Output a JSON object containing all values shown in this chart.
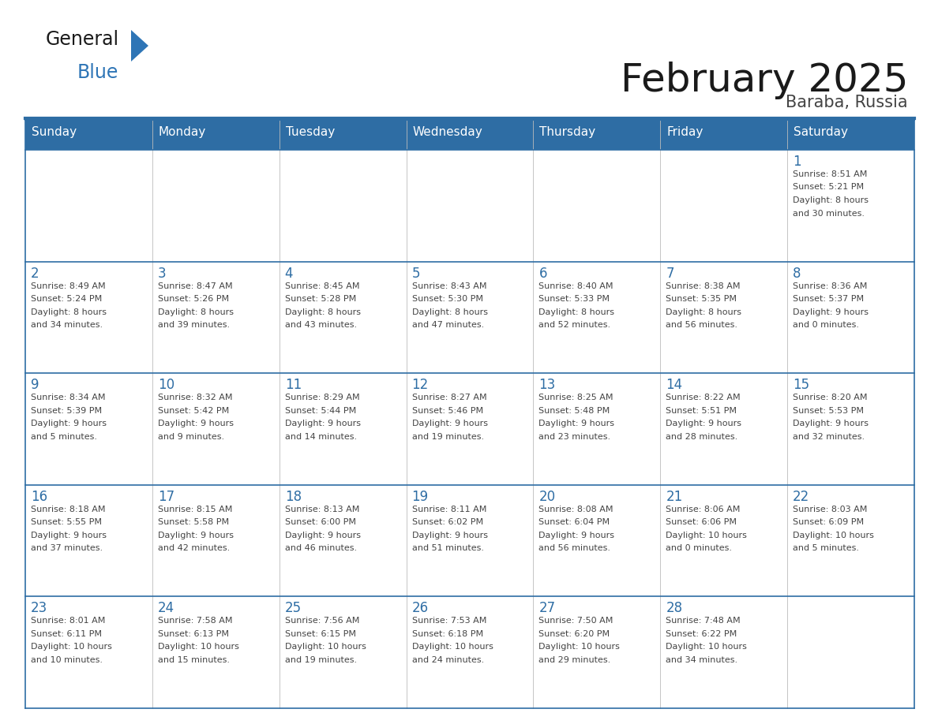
{
  "title": "February 2025",
  "subtitle": "Baraba, Russia",
  "header_bg": "#2E6DA4",
  "header_text_color": "#FFFFFF",
  "cell_bg": "#FFFFFF",
  "grid_line_color": "#2E6DA4",
  "day_number_color": "#2E6DA4",
  "cell_text_color": "#444444",
  "days_of_week": [
    "Sunday",
    "Monday",
    "Tuesday",
    "Wednesday",
    "Thursday",
    "Friday",
    "Saturday"
  ],
  "weeks": [
    [
      {
        "day": "",
        "info": ""
      },
      {
        "day": "",
        "info": ""
      },
      {
        "day": "",
        "info": ""
      },
      {
        "day": "",
        "info": ""
      },
      {
        "day": "",
        "info": ""
      },
      {
        "day": "",
        "info": ""
      },
      {
        "day": "1",
        "info": "Sunrise: 8:51 AM\nSunset: 5:21 PM\nDaylight: 8 hours\nand 30 minutes."
      }
    ],
    [
      {
        "day": "2",
        "info": "Sunrise: 8:49 AM\nSunset: 5:24 PM\nDaylight: 8 hours\nand 34 minutes."
      },
      {
        "day": "3",
        "info": "Sunrise: 8:47 AM\nSunset: 5:26 PM\nDaylight: 8 hours\nand 39 minutes."
      },
      {
        "day": "4",
        "info": "Sunrise: 8:45 AM\nSunset: 5:28 PM\nDaylight: 8 hours\nand 43 minutes."
      },
      {
        "day": "5",
        "info": "Sunrise: 8:43 AM\nSunset: 5:30 PM\nDaylight: 8 hours\nand 47 minutes."
      },
      {
        "day": "6",
        "info": "Sunrise: 8:40 AM\nSunset: 5:33 PM\nDaylight: 8 hours\nand 52 minutes."
      },
      {
        "day": "7",
        "info": "Sunrise: 8:38 AM\nSunset: 5:35 PM\nDaylight: 8 hours\nand 56 minutes."
      },
      {
        "day": "8",
        "info": "Sunrise: 8:36 AM\nSunset: 5:37 PM\nDaylight: 9 hours\nand 0 minutes."
      }
    ],
    [
      {
        "day": "9",
        "info": "Sunrise: 8:34 AM\nSunset: 5:39 PM\nDaylight: 9 hours\nand 5 minutes."
      },
      {
        "day": "10",
        "info": "Sunrise: 8:32 AM\nSunset: 5:42 PM\nDaylight: 9 hours\nand 9 minutes."
      },
      {
        "day": "11",
        "info": "Sunrise: 8:29 AM\nSunset: 5:44 PM\nDaylight: 9 hours\nand 14 minutes."
      },
      {
        "day": "12",
        "info": "Sunrise: 8:27 AM\nSunset: 5:46 PM\nDaylight: 9 hours\nand 19 minutes."
      },
      {
        "day": "13",
        "info": "Sunrise: 8:25 AM\nSunset: 5:48 PM\nDaylight: 9 hours\nand 23 minutes."
      },
      {
        "day": "14",
        "info": "Sunrise: 8:22 AM\nSunset: 5:51 PM\nDaylight: 9 hours\nand 28 minutes."
      },
      {
        "day": "15",
        "info": "Sunrise: 8:20 AM\nSunset: 5:53 PM\nDaylight: 9 hours\nand 32 minutes."
      }
    ],
    [
      {
        "day": "16",
        "info": "Sunrise: 8:18 AM\nSunset: 5:55 PM\nDaylight: 9 hours\nand 37 minutes."
      },
      {
        "day": "17",
        "info": "Sunrise: 8:15 AM\nSunset: 5:58 PM\nDaylight: 9 hours\nand 42 minutes."
      },
      {
        "day": "18",
        "info": "Sunrise: 8:13 AM\nSunset: 6:00 PM\nDaylight: 9 hours\nand 46 minutes."
      },
      {
        "day": "19",
        "info": "Sunrise: 8:11 AM\nSunset: 6:02 PM\nDaylight: 9 hours\nand 51 minutes."
      },
      {
        "day": "20",
        "info": "Sunrise: 8:08 AM\nSunset: 6:04 PM\nDaylight: 9 hours\nand 56 minutes."
      },
      {
        "day": "21",
        "info": "Sunrise: 8:06 AM\nSunset: 6:06 PM\nDaylight: 10 hours\nand 0 minutes."
      },
      {
        "day": "22",
        "info": "Sunrise: 8:03 AM\nSunset: 6:09 PM\nDaylight: 10 hours\nand 5 minutes."
      }
    ],
    [
      {
        "day": "23",
        "info": "Sunrise: 8:01 AM\nSunset: 6:11 PM\nDaylight: 10 hours\nand 10 minutes."
      },
      {
        "day": "24",
        "info": "Sunrise: 7:58 AM\nSunset: 6:13 PM\nDaylight: 10 hours\nand 15 minutes."
      },
      {
        "day": "25",
        "info": "Sunrise: 7:56 AM\nSunset: 6:15 PM\nDaylight: 10 hours\nand 19 minutes."
      },
      {
        "day": "26",
        "info": "Sunrise: 7:53 AM\nSunset: 6:18 PM\nDaylight: 10 hours\nand 24 minutes."
      },
      {
        "day": "27",
        "info": "Sunrise: 7:50 AM\nSunset: 6:20 PM\nDaylight: 10 hours\nand 29 minutes."
      },
      {
        "day": "28",
        "info": "Sunrise: 7:48 AM\nSunset: 6:22 PM\nDaylight: 10 hours\nand 34 minutes."
      },
      {
        "day": "",
        "info": ""
      }
    ]
  ],
  "logo_text1": "General",
  "logo_text2": "Blue",
  "logo_color1": "#1a1a1a",
  "logo_color2": "#2E75B6",
  "logo_triangle_color": "#2E75B6",
  "title_fontsize": 36,
  "subtitle_fontsize": 15,
  "header_fontsize": 11,
  "day_number_fontsize": 12,
  "cell_text_fontsize": 8,
  "fig_width": 11.88,
  "fig_height": 9.18,
  "dpi": 100
}
